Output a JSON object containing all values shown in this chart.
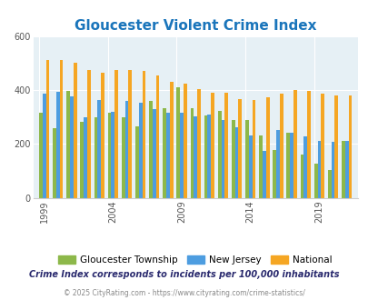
{
  "title": "Gloucester Violent Crime Index",
  "title_color": "#1a75bb",
  "subtitle": "Crime Index corresponds to incidents per 100,000 inhabitants",
  "footer": "© 2025 CityRating.com - https://www.cityrating.com/crime-statistics/",
  "years": [
    1999,
    2000,
    2001,
    2002,
    2003,
    2004,
    2005,
    2006,
    2007,
    2008,
    2009,
    2010,
    2011,
    2012,
    2013,
    2014,
    2015,
    2016,
    2017,
    2018,
    2019,
    2020,
    2021
  ],
  "gloucester": [
    315,
    260,
    395,
    282,
    300,
    315,
    298,
    265,
    358,
    333,
    410,
    332,
    305,
    322,
    290,
    290,
    233,
    178,
    242,
    160,
    128,
    105,
    210
  ],
  "new_jersey": [
    385,
    393,
    378,
    300,
    362,
    320,
    360,
    352,
    330,
    315,
    315,
    302,
    308,
    290,
    262,
    230,
    175,
    253,
    242,
    228,
    210,
    207,
    210
  ],
  "national": [
    510,
    510,
    500,
    475,
    465,
    475,
    475,
    470,
    455,
    430,
    425,
    405,
    390,
    390,
    368,
    362,
    372,
    385,
    400,
    395,
    385,
    380,
    380
  ],
  "colors": {
    "gloucester": "#8db84a",
    "new_jersey": "#4d9de0",
    "national": "#f5a623",
    "plot_bg": "#e6f0f5"
  },
  "ylim": [
    0,
    600
  ],
  "yticks": [
    0,
    200,
    400,
    600
  ],
  "tick_years": [
    1999,
    2004,
    2009,
    2014,
    2019
  ],
  "bar_width": 0.25,
  "legend_labels": [
    "Gloucester Township",
    "New Jersey",
    "National"
  ],
  "subtitle_color": "#2a2a6e",
  "footer_color": "#888888",
  "title_fontsize": 11,
  "tick_fontsize": 7,
  "legend_fontsize": 7.5,
  "subtitle_fontsize": 7,
  "footer_fontsize": 5.5
}
